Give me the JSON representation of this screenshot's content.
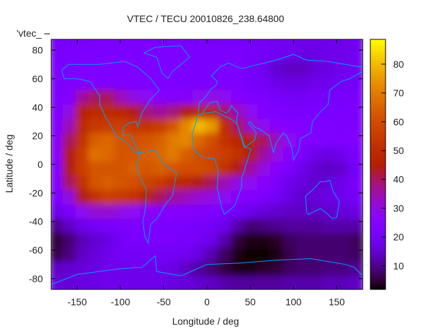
{
  "chart_data": {
    "type": "heatmap",
    "title": "VTEC / TECU 20010826_238.64800",
    "xlabel": "Longitude / deg",
    "ylabel": "Latitude / deg",
    "legend_entry": "'vtec_",
    "legend_placement": "top-left",
    "xlim": [
      -180,
      180
    ],
    "ylim": [
      -87.5,
      87.5
    ],
    "xticks": [
      -150,
      -100,
      -50,
      0,
      50,
      100,
      150
    ],
    "yticks": [
      -80,
      -60,
      -40,
      -20,
      0,
      20,
      40,
      60,
      80
    ],
    "colorbar": {
      "range": [
        1.8,
        88.6
      ],
      "ticks": [
        10,
        20,
        30,
        40,
        50,
        60,
        70,
        80
      ],
      "palette": "black-purple-red-orange-yellow"
    },
    "coastline_color": "#00a0ff",
    "lon": [
      -172.5,
      -157.5,
      -142.5,
      -127.5,
      -112.5,
      -97.5,
      -82.5,
      -67.5,
      -52.5,
      -37.5,
      -22.5,
      -7.5,
      7.5,
      22.5,
      37.5,
      52.5,
      67.5,
      82.5,
      97.5,
      112.5,
      127.5,
      142.5,
      157.5,
      172.5
    ],
    "lat": [
      85,
      75,
      65,
      55,
      45,
      35,
      25,
      15,
      5,
      -5,
      -15,
      -25,
      -35,
      -45,
      -55,
      -65,
      -75,
      -85
    ],
    "values": [
      [
        20,
        21,
        21,
        22,
        22,
        22,
        22,
        22,
        22,
        22,
        21,
        21,
        21,
        21,
        21,
        20,
        20,
        19,
        19,
        18,
        18,
        18,
        18,
        19
      ],
      [
        21,
        22,
        22,
        22,
        22,
        22,
        22,
        23,
        23,
        23,
        22,
        22,
        22,
        22,
        22,
        21,
        20,
        19,
        18,
        17,
        17,
        18,
        18,
        19
      ],
      [
        22,
        22,
        23,
        23,
        23,
        23,
        23,
        23,
        23,
        23,
        22,
        22,
        22,
        22,
        22,
        20,
        19,
        15,
        14,
        14,
        16,
        17,
        18,
        19
      ],
      [
        22,
        23,
        24,
        24,
        24,
        23,
        23,
        23,
        23,
        23,
        22,
        22,
        22,
        23,
        23,
        21,
        20,
        18,
        17,
        17,
        18,
        18,
        19,
        20
      ],
      [
        23,
        24,
        36,
        40,
        40,
        34,
        30,
        28,
        26,
        25,
        26,
        28,
        30,
        28,
        25,
        23,
        22,
        21,
        20,
        20,
        21,
        21,
        21,
        22
      ],
      [
        24,
        30,
        46,
        50,
        50,
        48,
        44,
        38,
        36,
        38,
        44,
        48,
        48,
        40,
        34,
        28,
        24,
        23,
        22,
        22,
        22,
        22,
        22,
        22
      ],
      [
        25,
        34,
        50,
        54,
        55,
        56,
        54,
        52,
        55,
        62,
        72,
        80,
        75,
        50,
        40,
        32,
        28,
        26,
        24,
        24,
        23,
        23,
        22,
        23
      ],
      [
        26,
        40,
        52,
        64,
        66,
        62,
        60,
        62,
        64,
        70,
        72,
        66,
        60,
        52,
        48,
        46,
        40,
        34,
        28,
        25,
        24,
        23,
        23,
        24
      ],
      [
        26,
        44,
        56,
        68,
        66,
        62,
        62,
        64,
        66,
        70,
        64,
        60,
        58,
        56,
        52,
        44,
        36,
        30,
        26,
        22,
        18,
        17,
        18,
        22
      ],
      [
        24,
        44,
        56,
        62,
        62,
        62,
        64,
        62,
        64,
        62,
        60,
        60,
        58,
        52,
        44,
        36,
        30,
        26,
        22,
        18,
        15,
        14,
        15,
        20
      ],
      [
        24,
        40,
        52,
        62,
        64,
        62,
        60,
        58,
        54,
        50,
        48,
        44,
        40,
        34,
        30,
        28,
        26,
        22,
        18,
        16,
        15,
        16,
        18,
        22
      ],
      [
        22,
        30,
        44,
        52,
        56,
        54,
        52,
        46,
        40,
        36,
        34,
        32,
        30,
        28,
        26,
        24,
        22,
        20,
        17,
        15,
        16,
        17,
        18,
        20
      ],
      [
        18,
        22,
        28,
        32,
        32,
        30,
        28,
        27,
        26,
        25,
        25,
        24,
        23,
        22,
        20,
        18,
        16,
        15,
        14,
        14,
        14,
        15,
        16,
        17
      ],
      [
        10,
        14,
        18,
        20,
        21,
        22,
        22,
        22,
        22,
        22,
        22,
        21,
        20,
        18,
        12,
        8,
        9,
        10,
        11,
        11,
        11,
        12,
        12,
        12
      ],
      [
        5,
        8,
        13,
        15,
        17,
        20,
        22,
        22,
        22,
        22,
        21,
        20,
        18,
        12,
        5,
        3,
        3,
        4,
        7,
        8,
        8,
        8,
        8,
        7
      ],
      [
        6,
        9,
        14,
        16,
        18,
        20,
        20,
        20,
        20,
        20,
        19,
        17,
        12,
        7,
        3,
        2,
        2,
        3,
        6,
        8,
        8,
        8,
        8,
        7
      ],
      [
        14,
        15,
        16,
        17,
        18,
        18,
        18,
        18,
        18,
        17,
        14,
        11,
        8,
        5,
        3,
        3,
        4,
        5,
        7,
        8,
        8,
        9,
        9,
        10
      ],
      [
        16,
        16,
        17,
        17,
        18,
        18,
        18,
        18,
        18,
        17,
        16,
        15,
        14,
        12,
        11,
        11,
        11,
        11,
        12,
        12,
        12,
        13,
        13,
        14
      ]
    ]
  }
}
